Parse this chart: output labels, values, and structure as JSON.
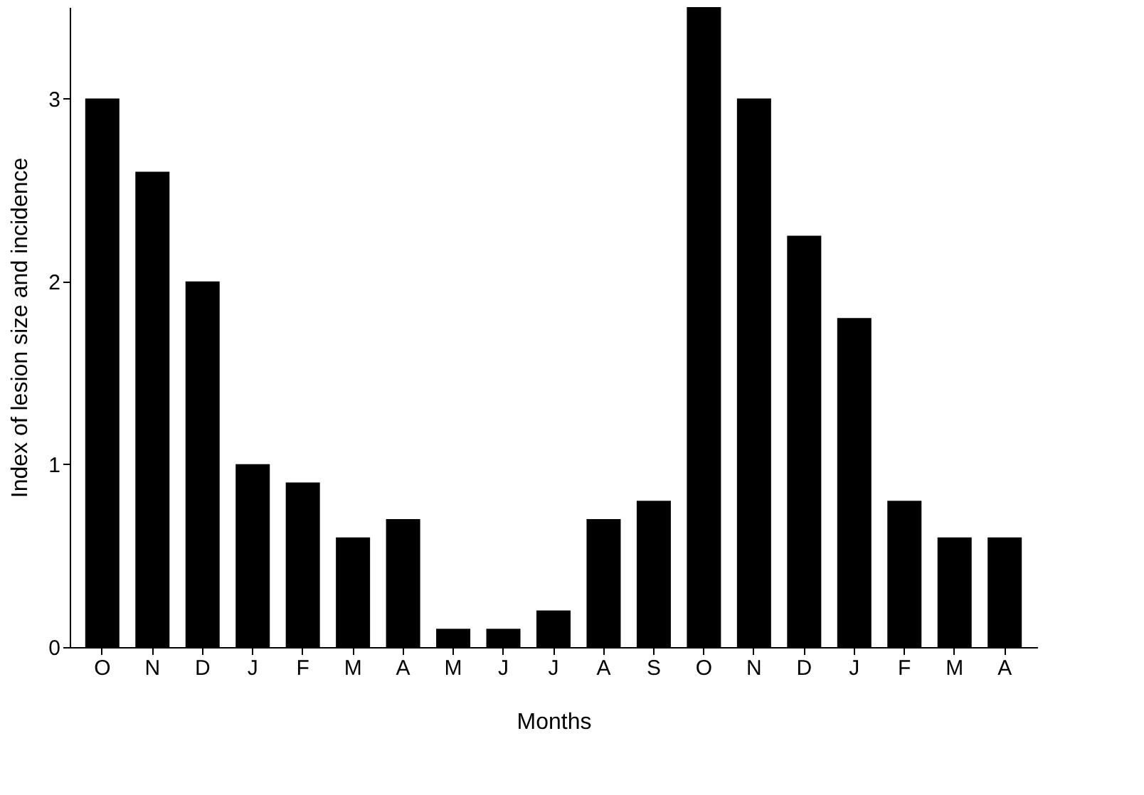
{
  "chart_data": {
    "type": "bar",
    "xlabel": "Months",
    "ylabel": "Index of lesion size and incidence",
    "categories": [
      "O",
      "N",
      "D",
      "J",
      "F",
      "M",
      "A",
      "M",
      "J",
      "J",
      "A",
      "S",
      "O",
      "N",
      "D",
      "J",
      "F",
      "M",
      "A"
    ],
    "values": [
      3.0,
      2.6,
      2.0,
      1.0,
      0.9,
      0.6,
      0.7,
      0.1,
      0.1,
      0.2,
      0.7,
      0.8,
      3.5,
      3.0,
      2.25,
      1.8,
      0.8,
      0.6,
      0.6
    ],
    "color": "#000000",
    "ylim": [
      0,
      3.5
    ],
    "yticks": [
      0,
      1,
      2,
      3
    ],
    "grid": false
  }
}
